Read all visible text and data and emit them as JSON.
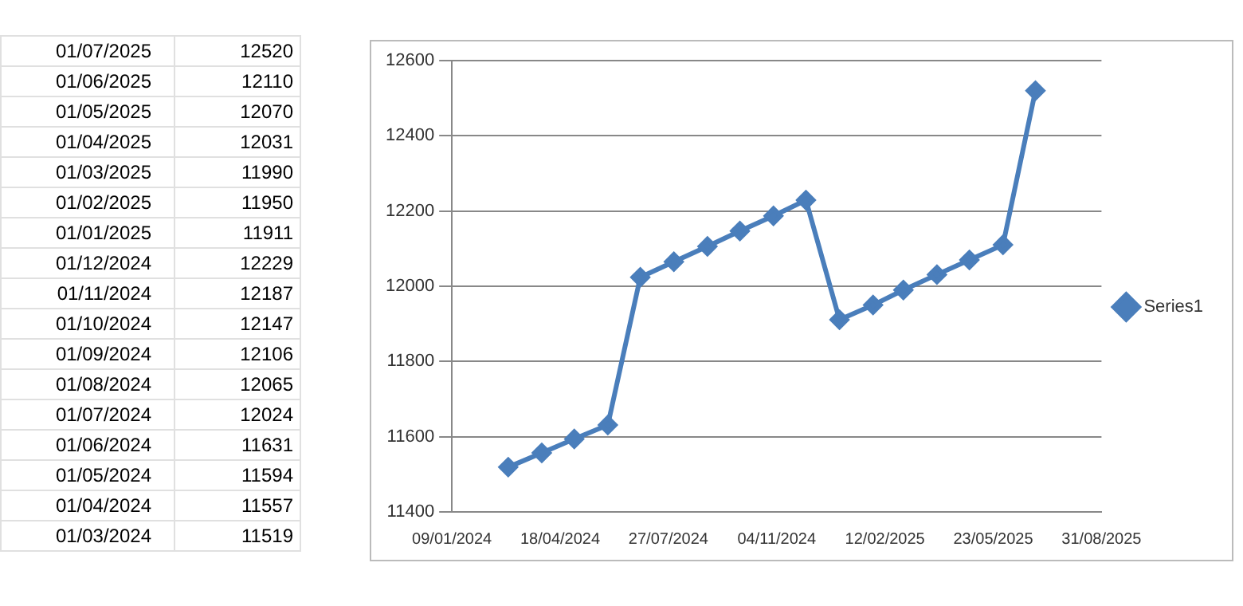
{
  "chart_data": {
    "type": "line",
    "x": [
      "2024-03-01",
      "2024-04-01",
      "2024-05-01",
      "2024-06-01",
      "2024-07-01",
      "2024-08-01",
      "2024-09-01",
      "2024-10-01",
      "2024-11-01",
      "2024-12-01",
      "2025-01-01",
      "2025-02-01",
      "2025-03-01",
      "2025-04-01",
      "2025-05-01",
      "2025-06-01",
      "2025-07-01"
    ],
    "series": [
      {
        "name": "Series1",
        "color": "#4a7ebb",
        "values": [
          11519,
          11557,
          11594,
          11631,
          12024,
          12065,
          12106,
          12147,
          12187,
          12229,
          11911,
          11950,
          11990,
          12031,
          12070,
          12110,
          12520
        ]
      }
    ],
    "xlim": [
      "2024-01-09",
      "2025-08-31"
    ],
    "xticks": [
      {
        "value": "2024-01-09",
        "label": "09/01/2024"
      },
      {
        "value": "2024-04-18",
        "label": "18/04/2024"
      },
      {
        "value": "2024-07-27",
        "label": "27/07/2024"
      },
      {
        "value": "2024-11-04",
        "label": "04/11/2024"
      },
      {
        "value": "2025-02-12",
        "label": "12/02/2025"
      },
      {
        "value": "2025-05-23",
        "label": "23/05/2025"
      },
      {
        "value": "2025-08-31",
        "label": "31/08/2025"
      }
    ],
    "ylim": [
      11400,
      12600
    ],
    "yticks": [
      11400,
      11600,
      11800,
      12000,
      12200,
      12400,
      12600
    ],
    "annotations": [
      "01/07/2025",
      "12520",
      "01/06/2025",
      "12110",
      "01/05/2025",
      "12070",
      "01/04/2025",
      "12031",
      "01/03/2025",
      "11990",
      "01/02/2025",
      "11950",
      "01/01/2025",
      "11911",
      "01/12/2024",
      "12229",
      "01/11/2024",
      "12187",
      "01/10/2024",
      "12147",
      "01/09/2024",
      "12106",
      "01/08/2024",
      "12065",
      "01/07/2024",
      "12024",
      "01/06/2024",
      "11631",
      "01/05/2024",
      "11594",
      "01/04/2024",
      "11557",
      "01/03/2024",
      "11519"
    ],
    "grid": "y",
    "legend": "right",
    "marker": "diamond",
    "line_style": "solid"
  }
}
